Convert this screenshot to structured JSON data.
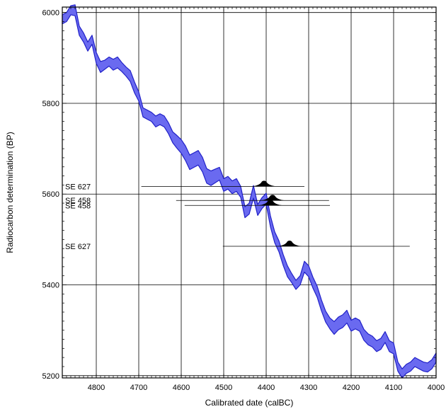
{
  "chart_data": {
    "type": "area",
    "xlabel": "Calibrated date (calBC)",
    "ylabel": "Radiocarbon determination (BP)",
    "xlim": [
      4880,
      4000
    ],
    "ylim": [
      5195,
      6012
    ],
    "x_ticks": [
      4800,
      4700,
      4600,
      4500,
      4400,
      4300,
      4200,
      4100,
      4000
    ],
    "y_ticks": [
      5200,
      5400,
      5600,
      5800,
      6000
    ],
    "grid": true,
    "band_color": "#6a6af0",
    "band_edge_color": "#2020c8",
    "calibration_curve": {
      "x": [
        4880,
        4870,
        4860,
        4850,
        4840,
        4830,
        4820,
        4810,
        4800,
        4790,
        4780,
        4770,
        4760,
        4750,
        4740,
        4730,
        4720,
        4710,
        4700,
        4690,
        4680,
        4670,
        4660,
        4650,
        4640,
        4630,
        4620,
        4610,
        4600,
        4590,
        4580,
        4570,
        4560,
        4550,
        4540,
        4530,
        4520,
        4510,
        4500,
        4490,
        4480,
        4470,
        4460,
        4450,
        4440,
        4430,
        4420,
        4410,
        4400,
        4390,
        4380,
        4370,
        4360,
        4350,
        4340,
        4330,
        4320,
        4310,
        4300,
        4290,
        4280,
        4270,
        4260,
        4250,
        4240,
        4230,
        4220,
        4210,
        4200,
        4190,
        4180,
        4170,
        4160,
        4150,
        4140,
        4130,
        4120,
        4110,
        4100,
        4090,
        4080,
        4070,
        4060,
        4050,
        4040,
        4030,
        4020,
        4010,
        4000
      ],
      "mid": [
        5985,
        5990,
        6005,
        6005,
        5960,
        5945,
        5925,
        5940,
        5900,
        5880,
        5885,
        5892,
        5885,
        5890,
        5880,
        5870,
        5860,
        5835,
        5815,
        5780,
        5775,
        5770,
        5760,
        5765,
        5760,
        5745,
        5725,
        5715,
        5705,
        5690,
        5670,
        5675,
        5680,
        5665,
        5640,
        5635,
        5640,
        5645,
        5620,
        5625,
        5615,
        5620,
        5605,
        5560,
        5568,
        5605,
        5565,
        5580,
        5590,
        5540,
        5505,
        5485,
        5455,
        5430,
        5415,
        5400,
        5410,
        5440,
        5430,
        5405,
        5385,
        5355,
        5330,
        5315,
        5305,
        5315,
        5320,
        5330,
        5310,
        5315,
        5310,
        5290,
        5280,
        5275,
        5265,
        5270,
        5285,
        5265,
        5260,
        5220,
        5205,
        5215,
        5220,
        5230,
        5225,
        5220,
        5218,
        5225,
        5240
      ],
      "half_width": [
        10,
        10,
        10,
        12,
        10,
        10,
        10,
        10,
        12,
        12,
        10,
        10,
        12,
        12,
        10,
        10,
        12,
        12,
        10,
        10,
        10,
        10,
        12,
        12,
        12,
        12,
        12,
        14,
        15,
        16,
        16,
        16,
        16,
        16,
        16,
        16,
        15,
        14,
        14,
        14,
        14,
        14,
        12,
        12,
        12,
        14,
        12,
        12,
        12,
        12,
        12,
        12,
        12,
        12,
        10,
        10,
        10,
        12,
        12,
        12,
        12,
        12,
        12,
        12,
        14,
        14,
        14,
        14,
        12,
        12,
        12,
        12,
        12,
        12,
        12,
        12,
        12,
        12,
        12,
        10,
        10,
        10,
        10,
        10,
        10,
        10,
        10,
        10,
        10
      ]
    },
    "samples": [
      {
        "label": "SE 627",
        "bp": 5617,
        "from": 4694,
        "to": 4310,
        "peak": 4405
      },
      {
        "label": "SE 458",
        "bp": 5586,
        "from": 4612,
        "to": 4252,
        "peak": 4385
      },
      {
        "label": "SE 458",
        "bp": 5575,
        "from": 4592,
        "to": 4250,
        "peak": 4390
      },
      {
        "label": "SE 627",
        "bp": 5485,
        "from": 4502,
        "to": 4062,
        "peak": 4345
      }
    ]
  }
}
